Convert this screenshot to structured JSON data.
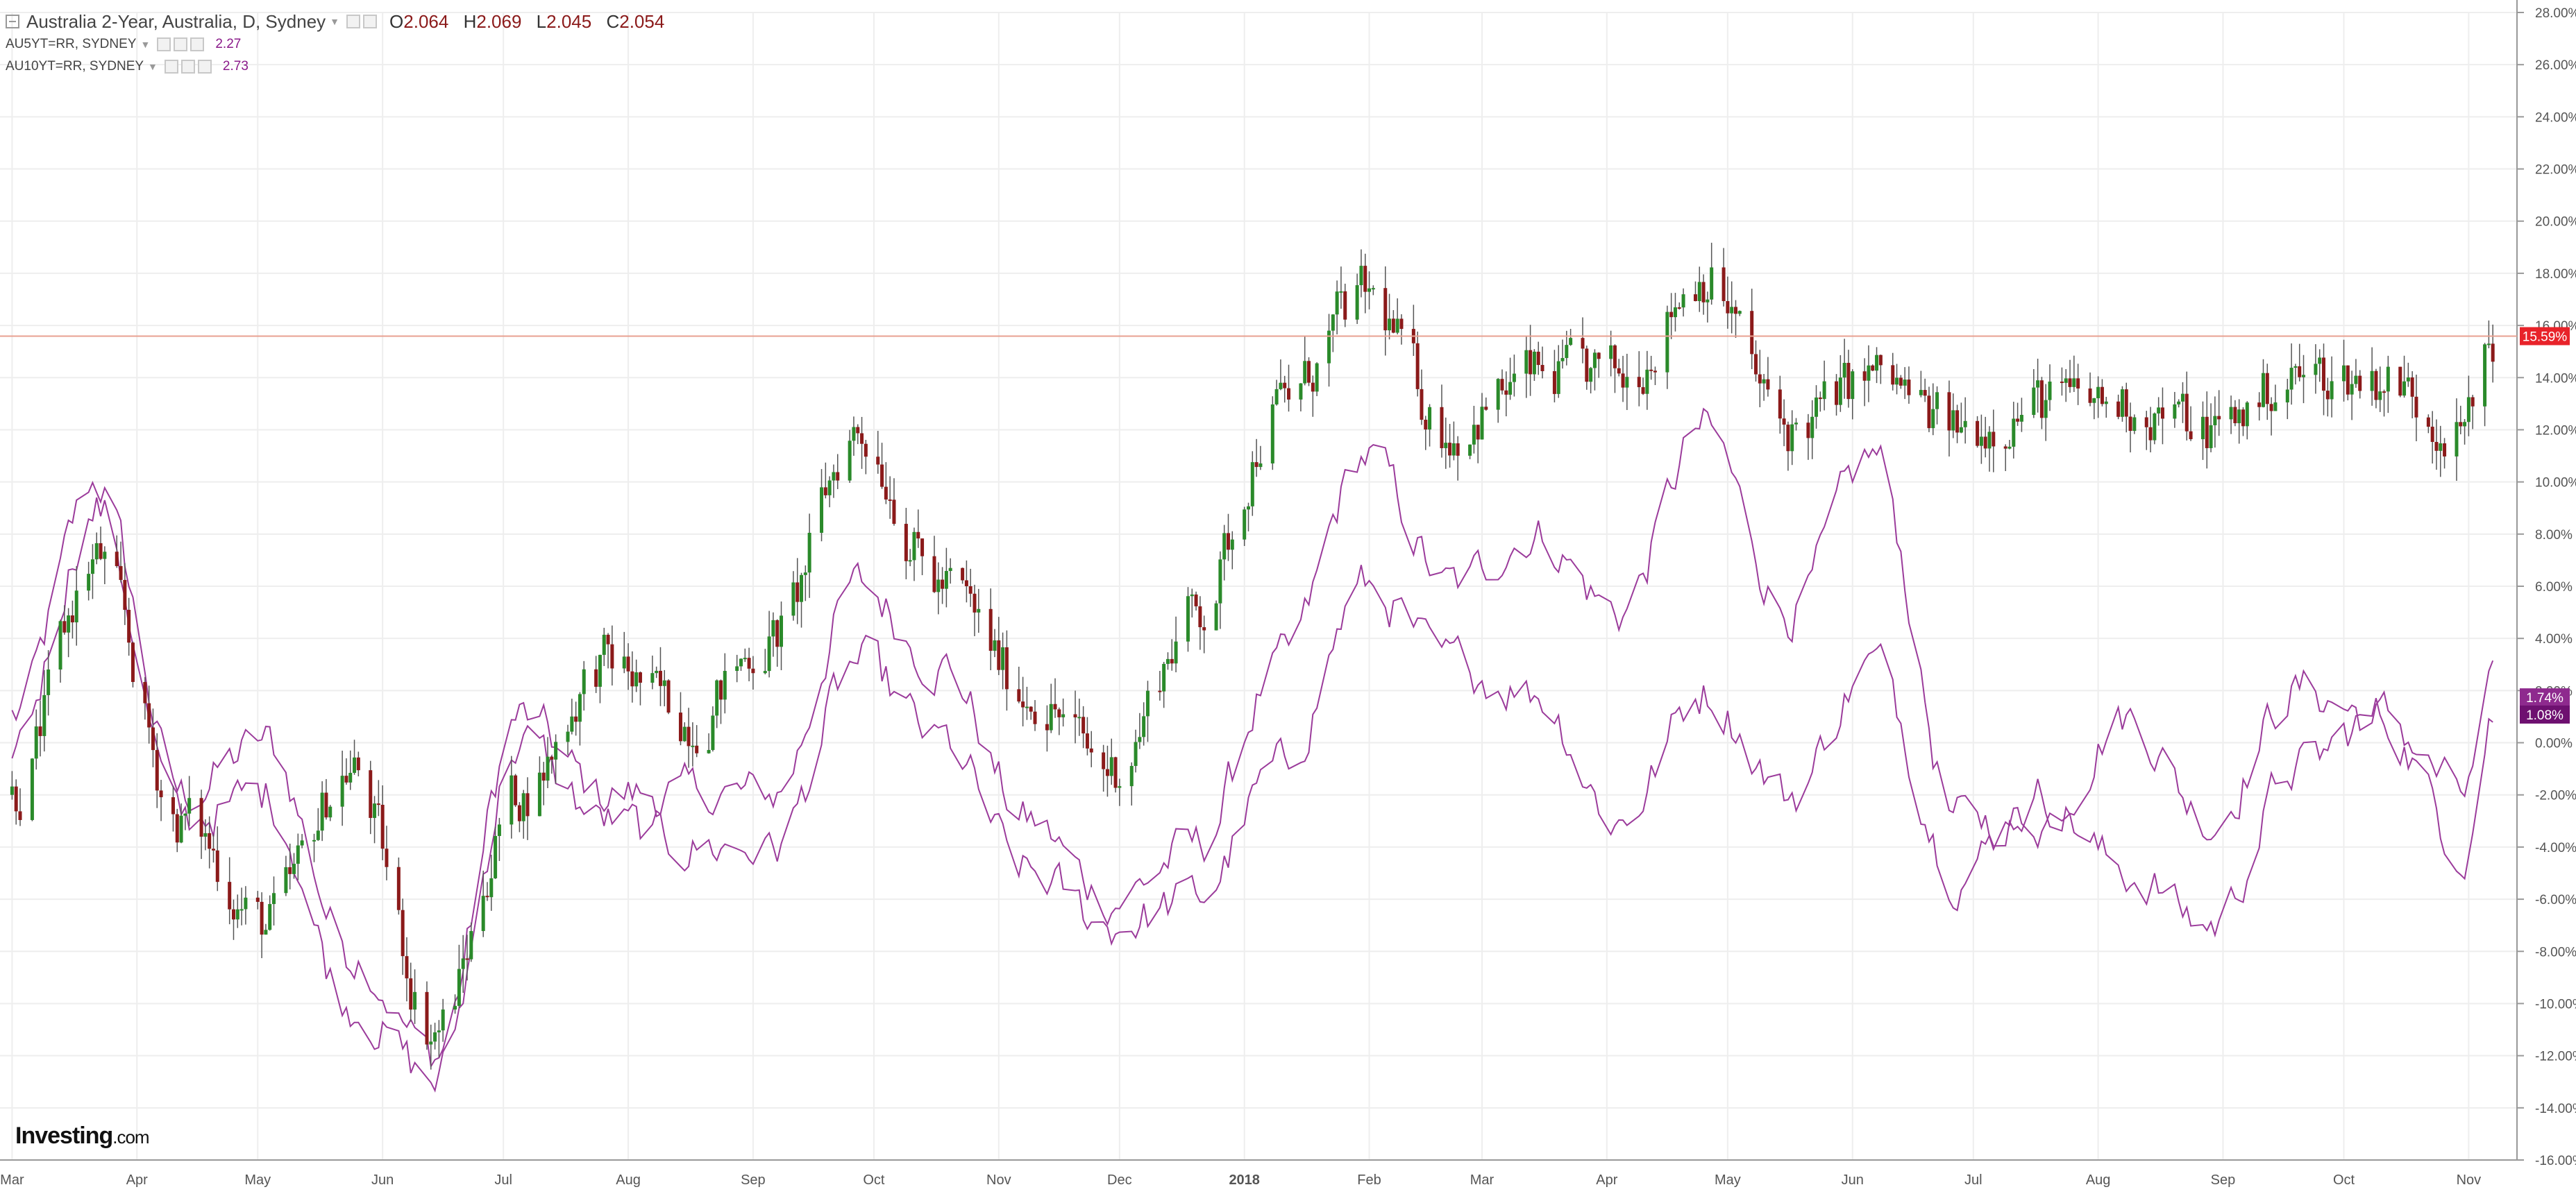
{
  "legend": {
    "main_title": "Australia 2-Year, Australia, D, Sydney",
    "ohlc": [
      {
        "key": "O",
        "val": "2.064"
      },
      {
        "key": "H",
        "val": "2.069"
      },
      {
        "key": "L",
        "val": "2.045"
      },
      {
        "key": "C",
        "val": "2.054"
      }
    ],
    "indicators": [
      {
        "label": "AU5YT=RR, SYDNEY",
        "value": "2.27"
      },
      {
        "label": "AU10YT=RR, SYDNEY",
        "value": "2.73"
      }
    ]
  },
  "logo": {
    "brand": "Investing",
    "suffix": ".com"
  },
  "colors": {
    "up": "#2a8a2a",
    "down": "#8b1a1a",
    "wick": "#555555",
    "line": "#9b3b9b",
    "grid": "#eeeeee",
    "price_line": "#e8a090",
    "price_badge": "#e8232a",
    "line_badge_1": "#8e2a8e",
    "line_badge_2": "#6e1070"
  },
  "chart_data": {
    "type": "line",
    "title": "Australia 2-Year, Australia, D, Sydney",
    "xlabel": "",
    "ylabel": "",
    "y_unit": "%",
    "ylim": [
      -16,
      28
    ],
    "y_ticks": [
      "28.00%",
      "26.00%",
      "24.00%",
      "22.00%",
      "20.00%",
      "18.00%",
      "16.00%",
      "14.00%",
      "12.00%",
      "10.00%",
      "8.00%",
      "6.00%",
      "4.00%",
      "2.00%",
      "0.00%",
      "-2.00%",
      "-4.00%",
      "-6.00%",
      "-8.00%",
      "-10.00%",
      "-12.00%",
      "-14.00%",
      "-16.00%"
    ],
    "x_ticks": [
      "Mar",
      "Apr",
      "May",
      "Jun",
      "Jul",
      "Aug",
      "Sep",
      "Oct",
      "Nov",
      "Dec",
      "2018",
      "Feb",
      "Mar",
      "Apr",
      "May",
      "Jun",
      "Jul",
      "Aug",
      "Sep",
      "Oct",
      "Nov"
    ],
    "grid": true,
    "last_value_labels": [
      "15.59%",
      "1.74%",
      "1.08%"
    ],
    "candle_series": {
      "name": "Australia 2-Year",
      "x": [
        "2017-03-01",
        "2017-03-22",
        "2017-04-12",
        "2017-05-03",
        "2017-05-24",
        "2017-06-14",
        "2017-07-05",
        "2017-07-26",
        "2017-08-16",
        "2017-09-06",
        "2017-09-27",
        "2017-10-18",
        "2017-11-08",
        "2017-11-29",
        "2017-12-20",
        "2018-01-10",
        "2018-01-31",
        "2018-02-21",
        "2018-03-14",
        "2018-04-04",
        "2018-04-25",
        "2018-05-16",
        "2018-06-06",
        "2018-06-27",
        "2018-07-18",
        "2018-08-08",
        "2018-08-29",
        "2018-09-19",
        "2018-10-10",
        "2018-10-31",
        "2018-11-07"
      ],
      "close": [
        -2,
        7,
        -3,
        -7,
        -1,
        -11,
        -2,
        3,
        1,
        4,
        12,
        6,
        2,
        -1,
        5,
        13,
        17,
        12,
        14,
        14,
        18,
        12,
        14,
        12,
        13,
        13,
        12,
        14,
        14,
        12,
        15.59
      ]
    },
    "line_series": [
      {
        "name": "AU5YT=RR, SYDNEY",
        "x": [
          "2017-03-01",
          "2017-03-22",
          "2017-04-12",
          "2017-05-03",
          "2017-05-24",
          "2017-06-14",
          "2017-07-05",
          "2017-07-26",
          "2017-08-16",
          "2017-09-06",
          "2017-09-27",
          "2017-10-18",
          "2017-11-08",
          "2017-11-29",
          "2017-12-20",
          "2018-01-10",
          "2018-01-31",
          "2018-02-21",
          "2018-03-14",
          "2018-04-04",
          "2018-04-25",
          "2018-05-16",
          "2018-06-06",
          "2018-06-27",
          "2018-07-18",
          "2018-08-08",
          "2018-08-29",
          "2018-09-19",
          "2018-10-10",
          "2018-10-31",
          "2018-11-07"
        ],
        "values": [
          1,
          10,
          -2,
          0,
          -8,
          -12,
          1,
          -2,
          -2,
          -2,
          6,
          3,
          -3,
          -6,
          -4,
          3,
          11,
          6,
          8,
          5,
          12,
          5,
          11,
          -3,
          -3,
          1,
          -3,
          2,
          1,
          -2,
          1.74
        ]
      },
      {
        "name": "AU10YT=RR, SYDNEY",
        "x": [
          "2017-03-01",
          "2017-03-22",
          "2017-04-12",
          "2017-05-03",
          "2017-05-24",
          "2017-06-14",
          "2017-07-05",
          "2017-07-26",
          "2017-08-16",
          "2017-09-06",
          "2017-09-27",
          "2017-10-18",
          "2017-11-08",
          "2017-11-29",
          "2017-12-20",
          "2018-01-10",
          "2018-01-31",
          "2018-02-21",
          "2018-03-14",
          "2018-04-04",
          "2018-04-25",
          "2018-05-16",
          "2018-06-06",
          "2018-06-27",
          "2018-07-18",
          "2018-08-08",
          "2018-08-29",
          "2018-09-19",
          "2018-10-10",
          "2018-10-31",
          "2018-11-07"
        ],
        "values": [
          0,
          9,
          -3,
          -2,
          -10,
          -13,
          0,
          -3,
          -4,
          -4,
          3,
          0,
          -5,
          -7,
          -6,
          -1,
          6,
          3,
          2,
          -3,
          2,
          -2,
          3,
          -5,
          -2,
          -5,
          -7,
          -1,
          1,
          -4,
          1.08
        ]
      }
    ]
  }
}
